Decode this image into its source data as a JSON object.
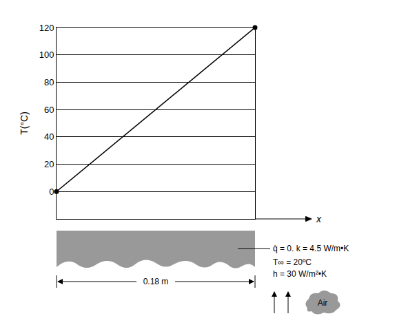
{
  "chart_data": {
    "type": "line",
    "x_label": "x",
    "y_label": "T(°C)",
    "x": [
      0,
      0.18
    ],
    "values": [
      0,
      120
    ],
    "color": "#000000",
    "marker": "circle",
    "xlim": [
      0,
      0.18
    ],
    "ylim": [
      -20,
      120
    ],
    "yticks": [
      0,
      20,
      40,
      60,
      80,
      100,
      120
    ],
    "grid": true,
    "tick_labels": "y"
  },
  "diagram": {
    "dimension": "0.18 m",
    "property": "q̇ = 0. k = 4.5 W/m•K",
    "ambient": "T∞ = 20ºC",
    "convection": "h = 30 W/m²•K",
    "fluid": "Air"
  }
}
